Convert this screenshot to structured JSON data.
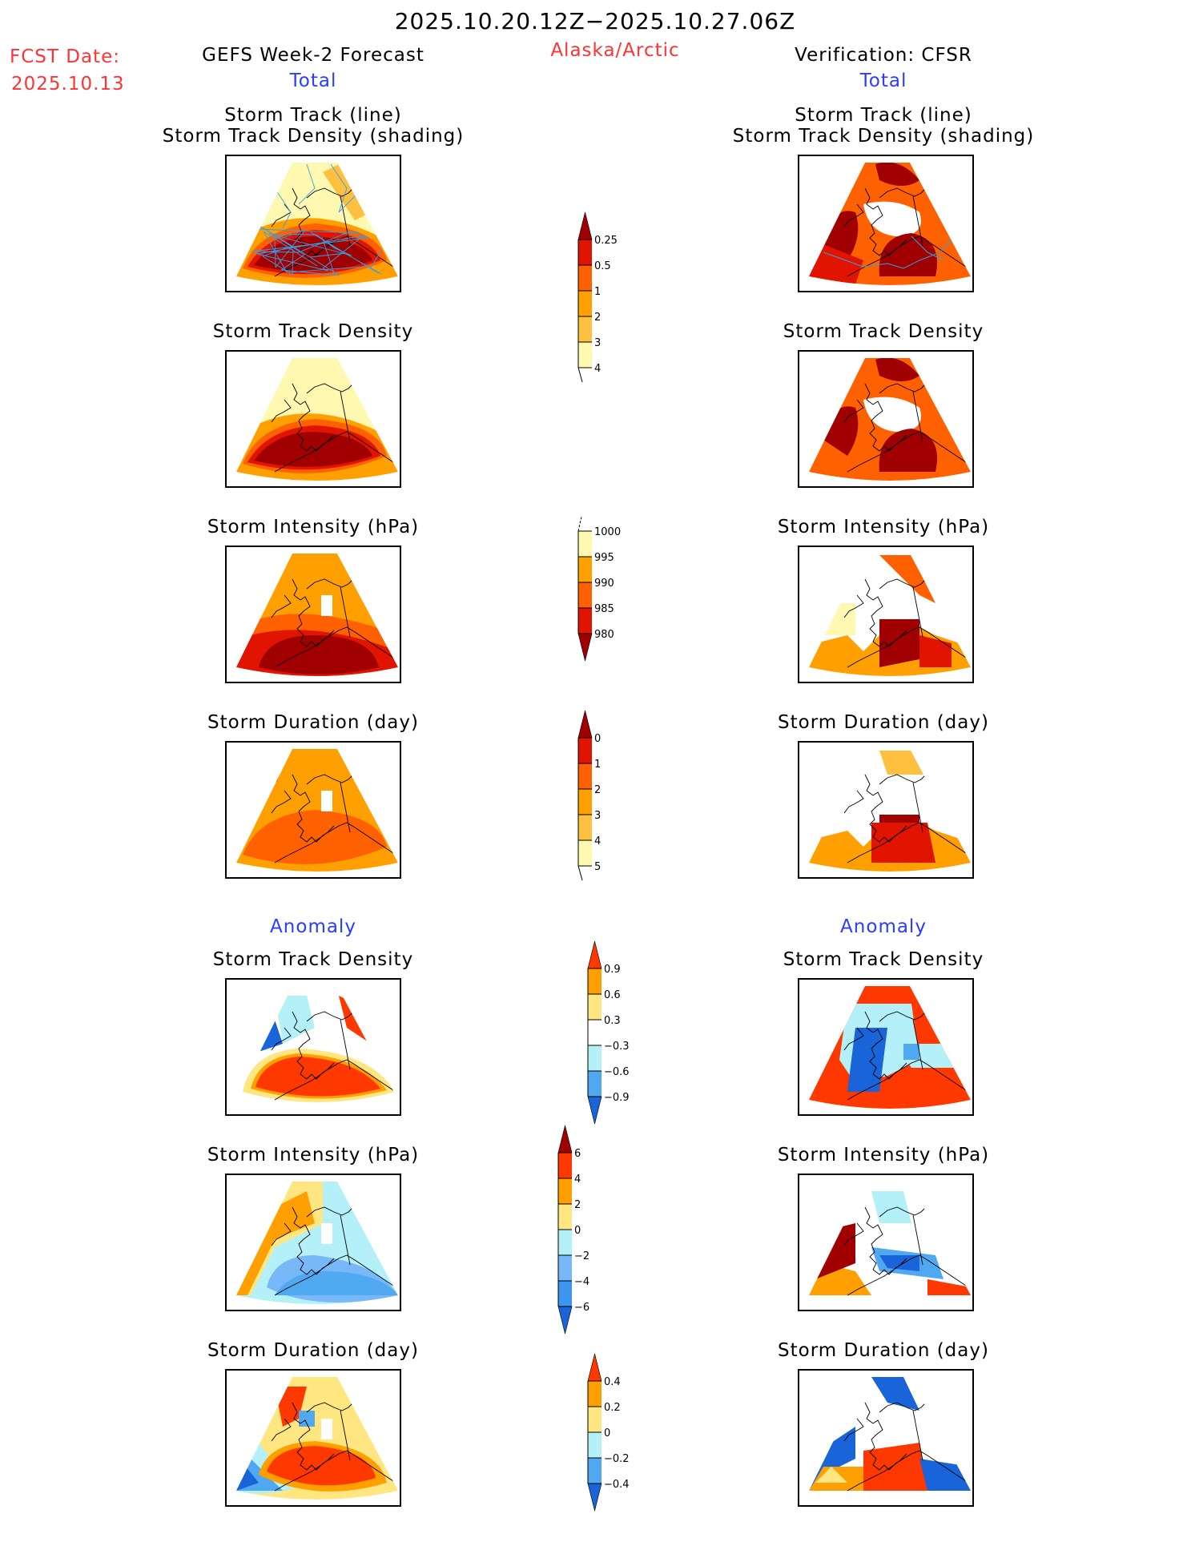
{
  "header": {
    "period": "2025.10.20.12Z−2025.10.27.06Z",
    "fcst_label": "FCST Date:",
    "fcst_date": "2025.10.13",
    "region": "Alaska/Arctic",
    "left_title": "GEFS Week-2 Forecast",
    "right_title": "Verification: CFSR",
    "total_label": "Total",
    "anomaly_label": "Anomaly"
  },
  "panel_titles": {
    "track_line": "Storm Track (line)",
    "track_shading": "Storm Track Density (shading)",
    "density": "Storm Track Density",
    "intensity": "Storm Intensity (hPa)",
    "duration": "Storm Duration (day)"
  },
  "chart_data": [
    {
      "type": "heatmap",
      "title": "Storm Track Density (Total) colorbar",
      "levels": [
        "0.25",
        "0.5",
        "1",
        "2",
        "3",
        "4"
      ],
      "colors": [
        "#fff8b0",
        "#ffc040",
        "#ffa000",
        "#ff6000",
        "#e01400",
        "#a00000"
      ],
      "extend": "both"
    },
    {
      "type": "heatmap",
      "title": "Storm Intensity (hPa) Total colorbar",
      "levels": [
        "1000",
        "995",
        "990",
        "985",
        "980"
      ],
      "colors": [
        "#fff8b0",
        "#ffa000",
        "#ff6000",
        "#e01400",
        "#a00000"
      ],
      "extend": "both"
    },
    {
      "type": "heatmap",
      "title": "Storm Duration (day) Total colorbar",
      "levels": [
        "0",
        "1",
        "2",
        "3",
        "4",
        "5"
      ],
      "colors": [
        "#fff8b0",
        "#ffc040",
        "#ffa000",
        "#ff6000",
        "#e01400",
        "#a00000"
      ],
      "extend": "both"
    },
    {
      "type": "heatmap",
      "title": "Storm Track Density Anomaly colorbar",
      "levels": [
        "0.9",
        "0.6",
        "0.3",
        "-0.3",
        "-0.6",
        "-0.9"
      ],
      "colors": [
        "#ff3800",
        "#ffa000",
        "#ffe680",
        "#ffffff",
        "#b4f0f8",
        "#50a8f0",
        "#1864d8"
      ],
      "extend": "both"
    },
    {
      "type": "heatmap",
      "title": "Storm Intensity (hPa) Anomaly colorbar",
      "levels": [
        "6",
        "4",
        "2",
        "0",
        "-2",
        "-4",
        "-6"
      ],
      "colors": [
        "#a00000",
        "#ff3800",
        "#ffa000",
        "#ffe680",
        "#b4f0f8",
        "#78b8f8",
        "#3c96f0",
        "#1864d8"
      ],
      "extend": "both"
    },
    {
      "type": "heatmap",
      "title": "Storm Duration (day) Anomaly colorbar",
      "levels": [
        "0.4",
        "0.2",
        "0",
        "-0.2",
        "-0.4"
      ],
      "colors": [
        "#ff3800",
        "#ffa000",
        "#ffe680",
        "#b4f0f8",
        "#50a8f0",
        "#1864d8"
      ],
      "extend": "both"
    }
  ]
}
